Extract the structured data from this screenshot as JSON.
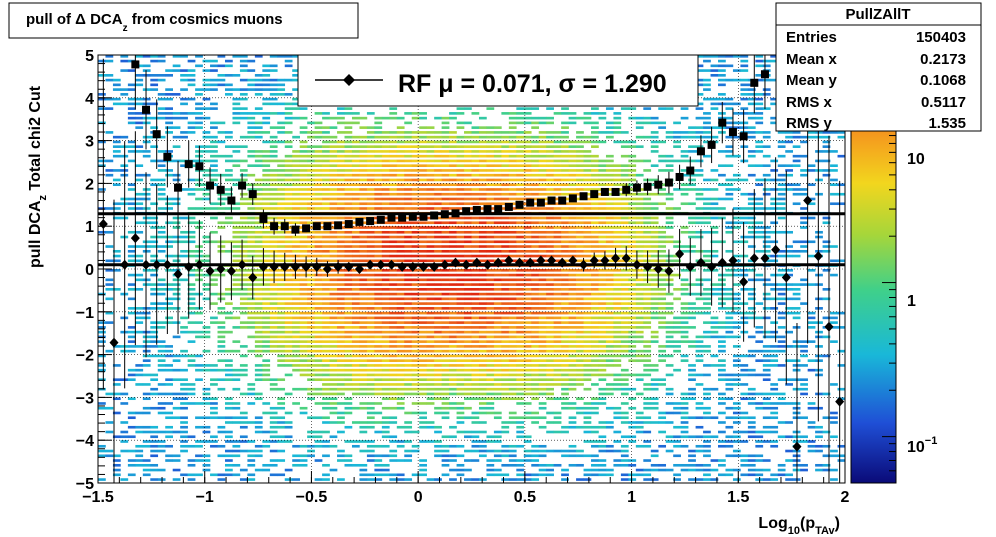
{
  "chart_data": {
    "type": "scatter",
    "title": "pull of Δ DCA_z from cosmics muons",
    "title_parts": {
      "main": "pull of Δ DCA",
      "sub": "z",
      "rest": " from cosmics muons"
    },
    "ylabel_parts": {
      "main": "pull DCA",
      "sub": "z",
      "rest": "   Total chi2 Cut"
    },
    "xlabel_parts": {
      "main": "Log",
      "sub1": "10",
      "mid": "(p",
      "sub2": "TAv",
      "end": ")"
    },
    "xlim": [
      -1.5,
      2
    ],
    "ylim": [
      -5,
      5
    ],
    "x_ticks": [
      -1.5,
      -1,
      -0.5,
      0,
      0.5,
      1,
      1.5,
      2
    ],
    "x_tick_labels": [
      "−1.5",
      "−1",
      "−0.5",
      "0",
      "0.5",
      "1",
      "1.5",
      "2"
    ],
    "y_ticks": [
      -5,
      -4,
      -3,
      -2,
      -1,
      0,
      1,
      2,
      3,
      4,
      5
    ],
    "y_tick_labels": [
      "−5",
      "−4",
      "−3",
      "−2",
      "−1",
      "0",
      "1",
      "2",
      "3",
      "4",
      "5"
    ],
    "grid": true,
    "color_axis": {
      "scale": "log",
      "tick_values": [
        0.1,
        1,
        10
      ],
      "tick_labels": {
        "ten": "10",
        "one": "1",
        "tenth_base": "10",
        "tenth_exp": "−1"
      },
      "zmin": 0.05,
      "zmax": 30
    },
    "legend": {
      "label": "RF μ =  0.071, σ =   1.290",
      "placement": "top-center"
    },
    "stats_box": {
      "title": "PullZAllT",
      "rows": [
        {
          "label": "Entries",
          "value": "150403"
        },
        {
          "label": "Mean x",
          "value": "0.2173"
        },
        {
          "label": "Mean y",
          "value": "0.1068"
        },
        {
          "label": "RMS x",
          "value": "0.5117"
        },
        {
          "label": "RMS y",
          "value": "1.535"
        }
      ]
    },
    "fit_lines": {
      "mean": 0.1,
      "sigma": 1.29
    },
    "series": [
      {
        "marker": "diamond",
        "x": [
          -1.475,
          -1.425,
          -1.375,
          -1.325,
          -1.275,
          -1.225,
          -1.175,
          -1.125,
          -1.075,
          -1.025,
          -0.975,
          -0.925,
          -0.875,
          -0.825,
          -0.775,
          -0.725,
          -0.675,
          -0.625,
          -0.575,
          -0.525,
          -0.475,
          -0.425,
          -0.375,
          -0.325,
          -0.275,
          -0.225,
          -0.175,
          -0.125,
          -0.075,
          -0.025,
          0.025,
          0.075,
          0.125,
          0.175,
          0.225,
          0.275,
          0.325,
          0.375,
          0.425,
          0.475,
          0.525,
          0.575,
          0.625,
          0.675,
          0.725,
          0.775,
          0.825,
          0.875,
          0.925,
          0.975,
          1.025,
          1.075,
          1.125,
          1.175,
          1.225,
          1.275,
          1.325,
          1.375,
          1.425,
          1.475,
          1.525,
          1.575,
          1.625,
          1.675,
          1.725,
          1.775,
          1.825,
          1.875,
          1.925,
          1.975
        ],
        "y": [
          1.05,
          -1.72,
          0.1,
          0.72,
          0.1,
          0.1,
          0.1,
          -0.12,
          0.05,
          0.1,
          -0.05,
          0.0,
          -0.05,
          0.1,
          -0.2,
          0.05,
          0.05,
          0.05,
          0.05,
          0.05,
          0.05,
          0.0,
          0.05,
          0.05,
          0.0,
          0.1,
          0.1,
          0.1,
          0.05,
          0.05,
          0.05,
          0.05,
          0.1,
          0.15,
          0.1,
          0.15,
          0.1,
          0.15,
          0.2,
          0.15,
          0.15,
          0.2,
          0.2,
          0.15,
          0.2,
          0.1,
          0.2,
          0.2,
          0.25,
          0.25,
          0.1,
          0.05,
          0.0,
          -0.05,
          0.35,
          0.05,
          0.15,
          0.05,
          0.15,
          0.2,
          -0.3,
          0.25,
          0.25,
          0.45,
          -0.2,
          -4.15,
          1.6,
          0.3,
          -1.35,
          -3.1
        ]
      },
      {
        "marker": "square",
        "x": [
          -1.325,
          -1.275,
          -1.225,
          -1.175,
          -1.125,
          -1.075,
          -1.025,
          -0.975,
          -0.925,
          -0.875,
          -0.825,
          -0.775,
          -0.725,
          -0.675,
          -0.625,
          -0.575,
          -0.525,
          -0.475,
          -0.425,
          -0.375,
          -0.325,
          -0.275,
          -0.225,
          -0.175,
          -0.125,
          -0.075,
          -0.025,
          0.025,
          0.075,
          0.125,
          0.175,
          0.225,
          0.275,
          0.325,
          0.375,
          0.425,
          0.475,
          0.525,
          0.575,
          0.625,
          0.675,
          0.725,
          0.775,
          0.825,
          0.875,
          0.925,
          0.975,
          1.025,
          1.075,
          1.125,
          1.175,
          1.225,
          1.275,
          1.325,
          1.375,
          1.425,
          1.475,
          1.525,
          1.575,
          1.625
        ],
        "y": [
          4.78,
          3.72,
          3.15,
          2.62,
          1.9,
          2.45,
          2.4,
          1.95,
          1.85,
          1.6,
          1.95,
          1.75,
          1.17,
          1.0,
          1.0,
          0.92,
          0.95,
          1.0,
          1.0,
          1.02,
          1.05,
          1.1,
          1.12,
          1.15,
          1.2,
          1.2,
          1.22,
          1.22,
          1.25,
          1.28,
          1.3,
          1.35,
          1.38,
          1.4,
          1.4,
          1.45,
          1.5,
          1.55,
          1.55,
          1.6,
          1.6,
          1.65,
          1.7,
          1.75,
          1.8,
          1.8,
          1.85,
          1.9,
          1.92,
          1.97,
          2.02,
          2.15,
          2.3,
          2.75,
          2.9,
          3.42,
          3.2,
          3.1,
          4.35,
          4.55
        ]
      }
    ]
  }
}
